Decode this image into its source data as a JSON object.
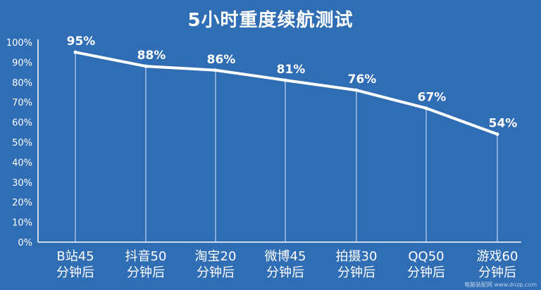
{
  "title": "5小时重度续航测试",
  "chart_data": {
    "type": "line",
    "title": "5小时重度续航测试",
    "categories": [
      [
        "B站45",
        "分钟后"
      ],
      [
        "抖音50",
        "分钟后"
      ],
      [
        "淘宝20",
        "分钟后"
      ],
      [
        "微博45",
        "分钟后"
      ],
      [
        "拍摄30",
        "分钟后"
      ],
      [
        "QQ50",
        "分钟后"
      ],
      [
        "游戏60",
        "分钟后"
      ]
    ],
    "values": [
      95,
      88,
      86,
      81,
      76,
      67,
      54
    ],
    "data_labels": [
      "95%",
      "88%",
      "86%",
      "81%",
      "76%",
      "67%",
      "54%"
    ],
    "yticks": [
      "0%",
      "10%",
      "20%",
      "30%",
      "40%",
      "50%",
      "60%",
      "70%",
      "80%",
      "90%",
      "100%"
    ],
    "ylim": [
      0,
      100
    ],
    "line_color": "#ffffff",
    "background_color": "#2f6db5",
    "drop_lines": true
  },
  "watermark": "电脑装配网 www.dnzp.com"
}
